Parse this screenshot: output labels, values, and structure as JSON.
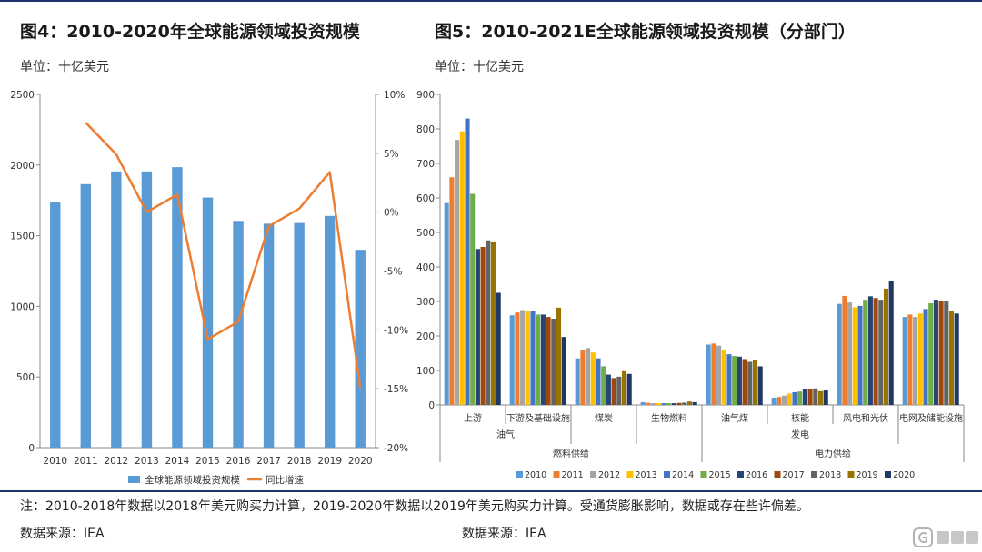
{
  "top_divider": true,
  "left_figure": {
    "title": "图4：2010-2020年全球能源领域投资规模",
    "unit": "单位：十亿美元"
  },
  "right_figure": {
    "title": "图5：2010-2021E全球能源领域投资规模（分部门）",
    "unit": "单位：十亿美元"
  },
  "note": "注：2010-2018年数据以2018年美元购买力计算，2019-2020年数据以2019年美元购买力计算。受通货膨胀影响，数据或存在些许偏差。",
  "source_left": "数据来源：IEA",
  "source_right": "数据来源：IEA",
  "watermark": {
    "name": "gelonghui-logo"
  },
  "chart_data": [
    {
      "type": "bar",
      "categories": [
        "2010",
        "2011",
        "2012",
        "2013",
        "2014",
        "2015",
        "2016",
        "2017",
        "2018",
        "2019",
        "2020"
      ],
      "series": [
        {
          "name": "全球能源领域投资规模",
          "type": "bar",
          "axis": "left",
          "color": "#5b9bd5",
          "values": [
            1735,
            1865,
            1955,
            1955,
            1985,
            1770,
            1605,
            1585,
            1590,
            1640,
            1400
          ]
        },
        {
          "name": "同比增速",
          "type": "line",
          "axis": "right",
          "color": "#ed7d31",
          "values": [
            null,
            7.6,
            4.9,
            0.0,
            1.5,
            -10.8,
            -9.3,
            -1.2,
            0.3,
            3.4,
            -14.9
          ]
        }
      ],
      "ylim_left": [
        0,
        2500
      ],
      "yticks_left": [
        "0",
        "500",
        "1000",
        "1500",
        "2000",
        "2500"
      ],
      "ylim_right": [
        -20,
        10
      ],
      "yticks_right": [
        "-20%",
        "-15%",
        "-10%",
        "-5%",
        "0%",
        "5%",
        "10%"
      ],
      "grid": false,
      "legend_position": "bottom"
    },
    {
      "type": "bar",
      "years": [
        "2010",
        "2011",
        "2012",
        "2013",
        "2014",
        "2015",
        "2016",
        "2017",
        "2018",
        "2019",
        "2020"
      ],
      "colors": [
        "#5b9bd5",
        "#ed7d31",
        "#a5a5a5",
        "#ffc000",
        "#4472c4",
        "#70ad47",
        "#264478",
        "#9e480e",
        "#636363",
        "#997300",
        "#203864"
      ],
      "categories": [
        "上游",
        "下游及基础设施",
        "煤炭",
        "生物燃料",
        "油气煤",
        "核能",
        "风电和光伏",
        "电网及储能设施"
      ],
      "groups_level2": [
        {
          "label": "油气",
          "span": [
            0,
            1
          ]
        },
        {
          "label": "",
          "span": [
            2,
            2
          ]
        },
        {
          "label": "",
          "span": [
            3,
            3
          ]
        },
        {
          "label": "发电",
          "span": [
            4,
            6
          ]
        },
        {
          "label": "",
          "span": [
            7,
            7
          ]
        }
      ],
      "groups_level3": [
        {
          "label": "燃料供给",
          "span": [
            0,
            3
          ]
        },
        {
          "label": "电力供给",
          "span": [
            4,
            7
          ]
        }
      ],
      "values": [
        [
          585,
          660,
          768,
          793,
          830,
          612,
          452,
          458,
          477,
          474,
          325
        ],
        [
          260,
          268,
          275,
          272,
          272,
          262,
          262,
          255,
          250,
          282,
          197
        ],
        [
          135,
          158,
          165,
          152,
          135,
          112,
          88,
          78,
          82,
          98,
          90
        ],
        [
          8,
          6,
          5,
          5,
          5,
          5,
          5,
          6,
          7,
          10,
          8
        ],
        [
          175,
          178,
          172,
          160,
          147,
          142,
          140,
          133,
          125,
          130,
          112
        ],
        [
          21,
          23,
          27,
          33,
          37,
          39,
          45,
          47,
          48,
          40,
          42
        ],
        [
          293,
          316,
          297,
          283,
          287,
          305,
          315,
          310,
          305,
          337,
          360
        ],
        [
          255,
          262,
          255,
          265,
          278,
          295,
          305,
          300,
          300,
          272,
          265
        ]
      ],
      "ylim": [
        0,
        900
      ],
      "yticks": [
        "0",
        "100",
        "200",
        "300",
        "400",
        "500",
        "600",
        "700",
        "800",
        "900"
      ],
      "grid": false,
      "legend_position": "bottom"
    }
  ]
}
